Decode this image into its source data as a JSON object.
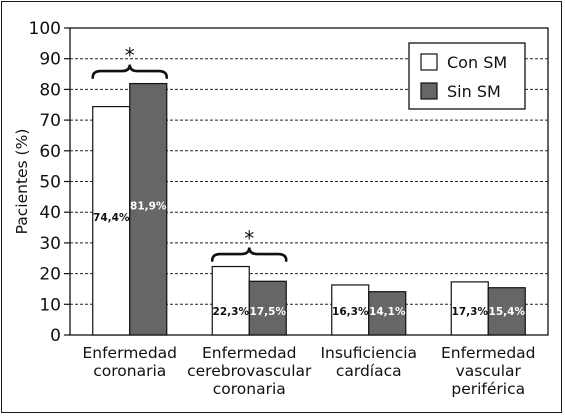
{
  "chart_data": {
    "type": "bar",
    "ylabel": "Pacientes (%)",
    "ylim": [
      0,
      100
    ],
    "yticks": [
      0,
      10,
      20,
      30,
      40,
      50,
      60,
      70,
      80,
      90,
      100
    ],
    "grid": "horizontal dashed",
    "legend_position": "top-right",
    "categories": [
      [
        "Enfermedad",
        "coronaria"
      ],
      [
        "Enfermedad",
        "cerebrovascular",
        "coronaria"
      ],
      [
        "Insuficiencia",
        "cardíaca"
      ],
      [
        "Enfermedad",
        "vascular",
        "periférica"
      ]
    ],
    "series": [
      {
        "name": "Con SM",
        "color": "#ffffff",
        "label_color": "#111111",
        "values": [
          74.4,
          22.3,
          16.3,
          17.3
        ],
        "labels": [
          "74,4%",
          "22,3%",
          "16,3%",
          "17,3%"
        ]
      },
      {
        "name": "Sin SM",
        "color": "#666666",
        "label_color": "#ffffff",
        "values": [
          81.9,
          17.5,
          14.1,
          15.4
        ],
        "labels": [
          "81,9%",
          "17,5%",
          "14,1%",
          "15,4%"
        ]
      }
    ],
    "annotations": [
      {
        "category_index": 0,
        "text": "*"
      },
      {
        "category_index": 1,
        "text": "*"
      }
    ]
  }
}
